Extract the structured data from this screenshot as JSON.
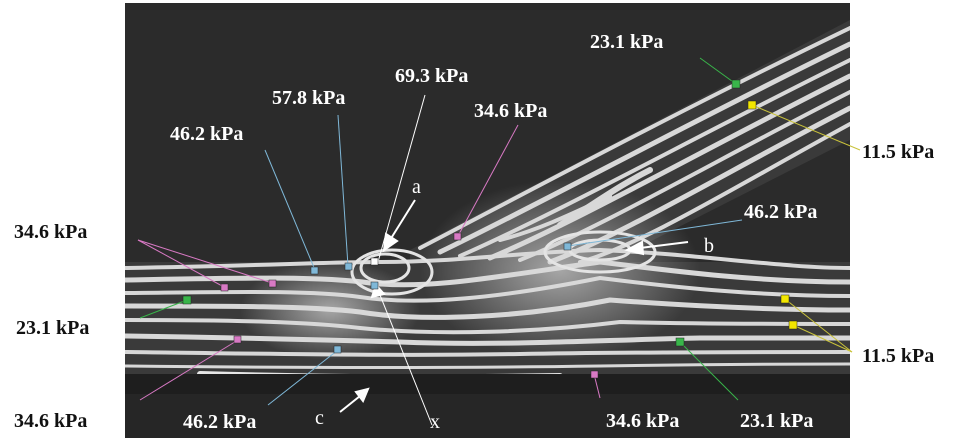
{
  "labels": {
    "p_23_1_top": "23.1 kPa",
    "p_69_3": "69.3  kPa",
    "p_57_8": "57.8 kPa",
    "p_34_6_mid": "34.6 kPa",
    "p_46_2_left": "46.2 kPa",
    "p_11_5_top_right": "11.5  kPa",
    "p_46_2_right": "46.2 kPa",
    "p_34_6_left": "34.6 kPa",
    "p_23_1_left": "23.1  kPa",
    "p_11_5_right": "11.5 kPa",
    "p_34_6_bottom_left": "34.6 kPa",
    "p_46_2_bottom": "46.2 kPa",
    "p_34_6_bottom": "34.6  kPa",
    "p_23_1_bottom": "23.1 kPa"
  },
  "letters": {
    "a": "a",
    "b": "b",
    "c": "c",
    "x": "x"
  },
  "colors": {
    "photo_bg": "#2b2b2b",
    "fringe": "#d8d8d8",
    "green_marker": "#39b54a",
    "yellow_marker": "#f2e600",
    "blue_marker": "#7fb8d8",
    "pink_marker": "#d879c4",
    "white_marker": "#ffffff"
  }
}
